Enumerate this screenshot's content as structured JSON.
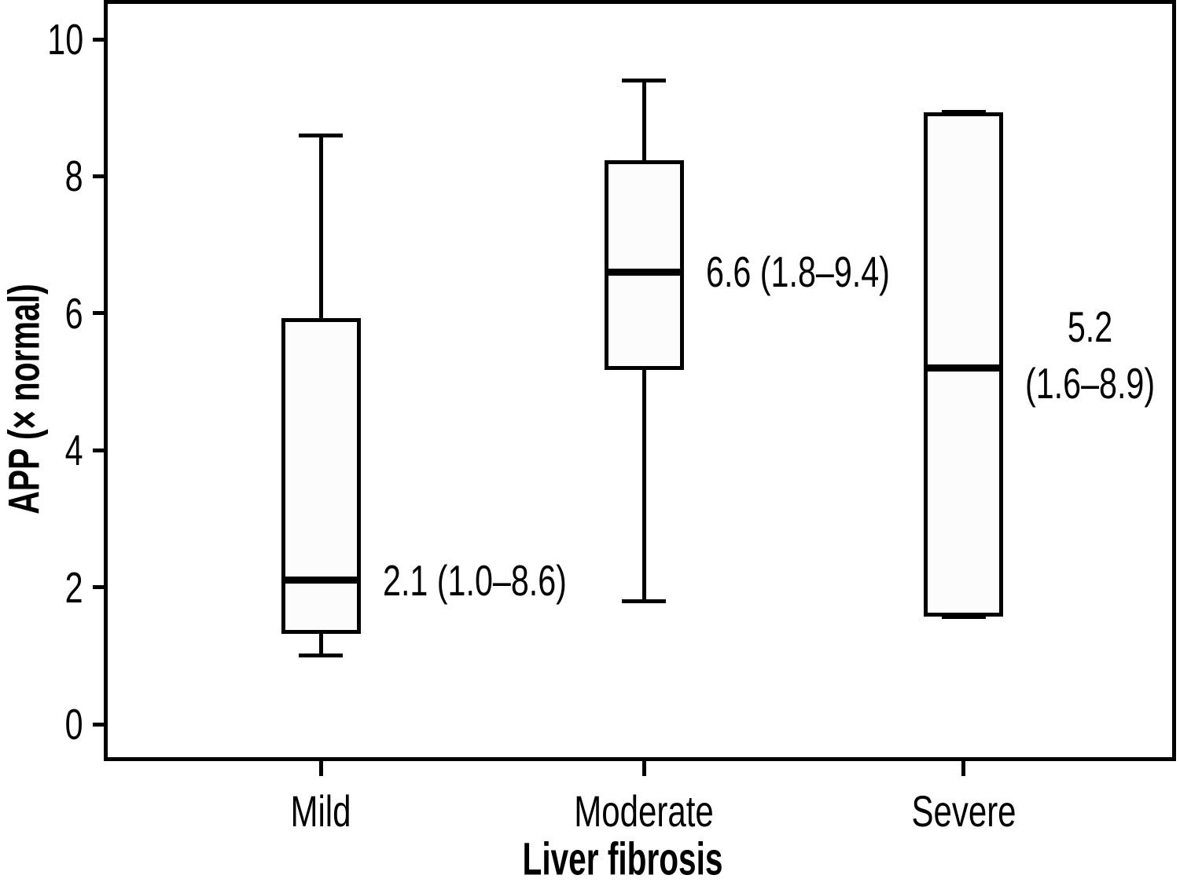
{
  "chart_data": {
    "type": "boxplot",
    "title": "",
    "xlabel": "Liver fibrosis",
    "ylabel": "APP (× normal)",
    "ylim": [
      0,
      10
    ],
    "yticks": [
      0,
      2,
      4,
      6,
      8,
      10
    ],
    "grid": false,
    "legend": null,
    "categories": [
      "Mild",
      "Moderate",
      "Severe"
    ],
    "series": [
      {
        "category": "Mild",
        "min": 1.0,
        "q1": 1.35,
        "median": 2.1,
        "q3": 5.9,
        "max": 8.6,
        "annotation": [
          "2.1 (1.0–8.6)"
        ]
      },
      {
        "category": "Moderate",
        "min": 1.8,
        "q1": 5.2,
        "median": 6.6,
        "q3": 8.2,
        "max": 9.4,
        "annotation": [
          "6.6 (1.8–9.4)"
        ]
      },
      {
        "category": "Severe",
        "min": 1.6,
        "q1": 1.6,
        "median": 5.2,
        "q3": 8.9,
        "max": 8.9,
        "annotation": [
          "5.2",
          "(1.6–8.9)"
        ]
      }
    ]
  },
  "colors": {
    "foreground": "#000000",
    "background": "#ffffff",
    "box_fill": "#fcfcfc"
  }
}
